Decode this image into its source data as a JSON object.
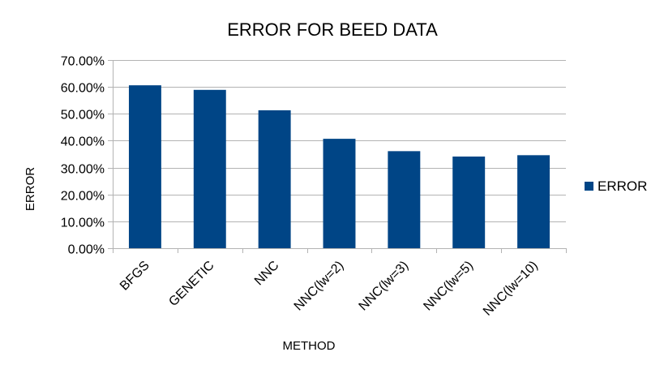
{
  "chart_data": {
    "type": "bar",
    "title": "ERROR FOR BEED DATA",
    "xlabel": "METHOD",
    "ylabel": "ERROR",
    "categories": [
      "BFGS",
      "GENETIC",
      "NNC",
      "NNC(lw=2)",
      "NNC(lw=3)",
      "NNC(lw=5)",
      "NNC(lw=10)"
    ],
    "series": [
      {
        "name": "ERROR",
        "color": "#004586",
        "values": [
          0.606,
          0.589,
          0.513,
          0.407,
          0.361,
          0.341,
          0.346
        ]
      }
    ],
    "ylim": [
      0,
      0.7
    ],
    "yticks": [
      0,
      0.1,
      0.2,
      0.3,
      0.4,
      0.5,
      0.6,
      0.7
    ],
    "ytick_labels": [
      "0.00%",
      "10.00%",
      "20.00%",
      "30.00%",
      "40.00%",
      "50.00%",
      "60.00%",
      "70.00%"
    ],
    "grid": true,
    "legend_position": "right",
    "colors": {
      "bar": "#004586",
      "grid": "#b3b3b3",
      "axis": "#b3b3b3"
    }
  }
}
